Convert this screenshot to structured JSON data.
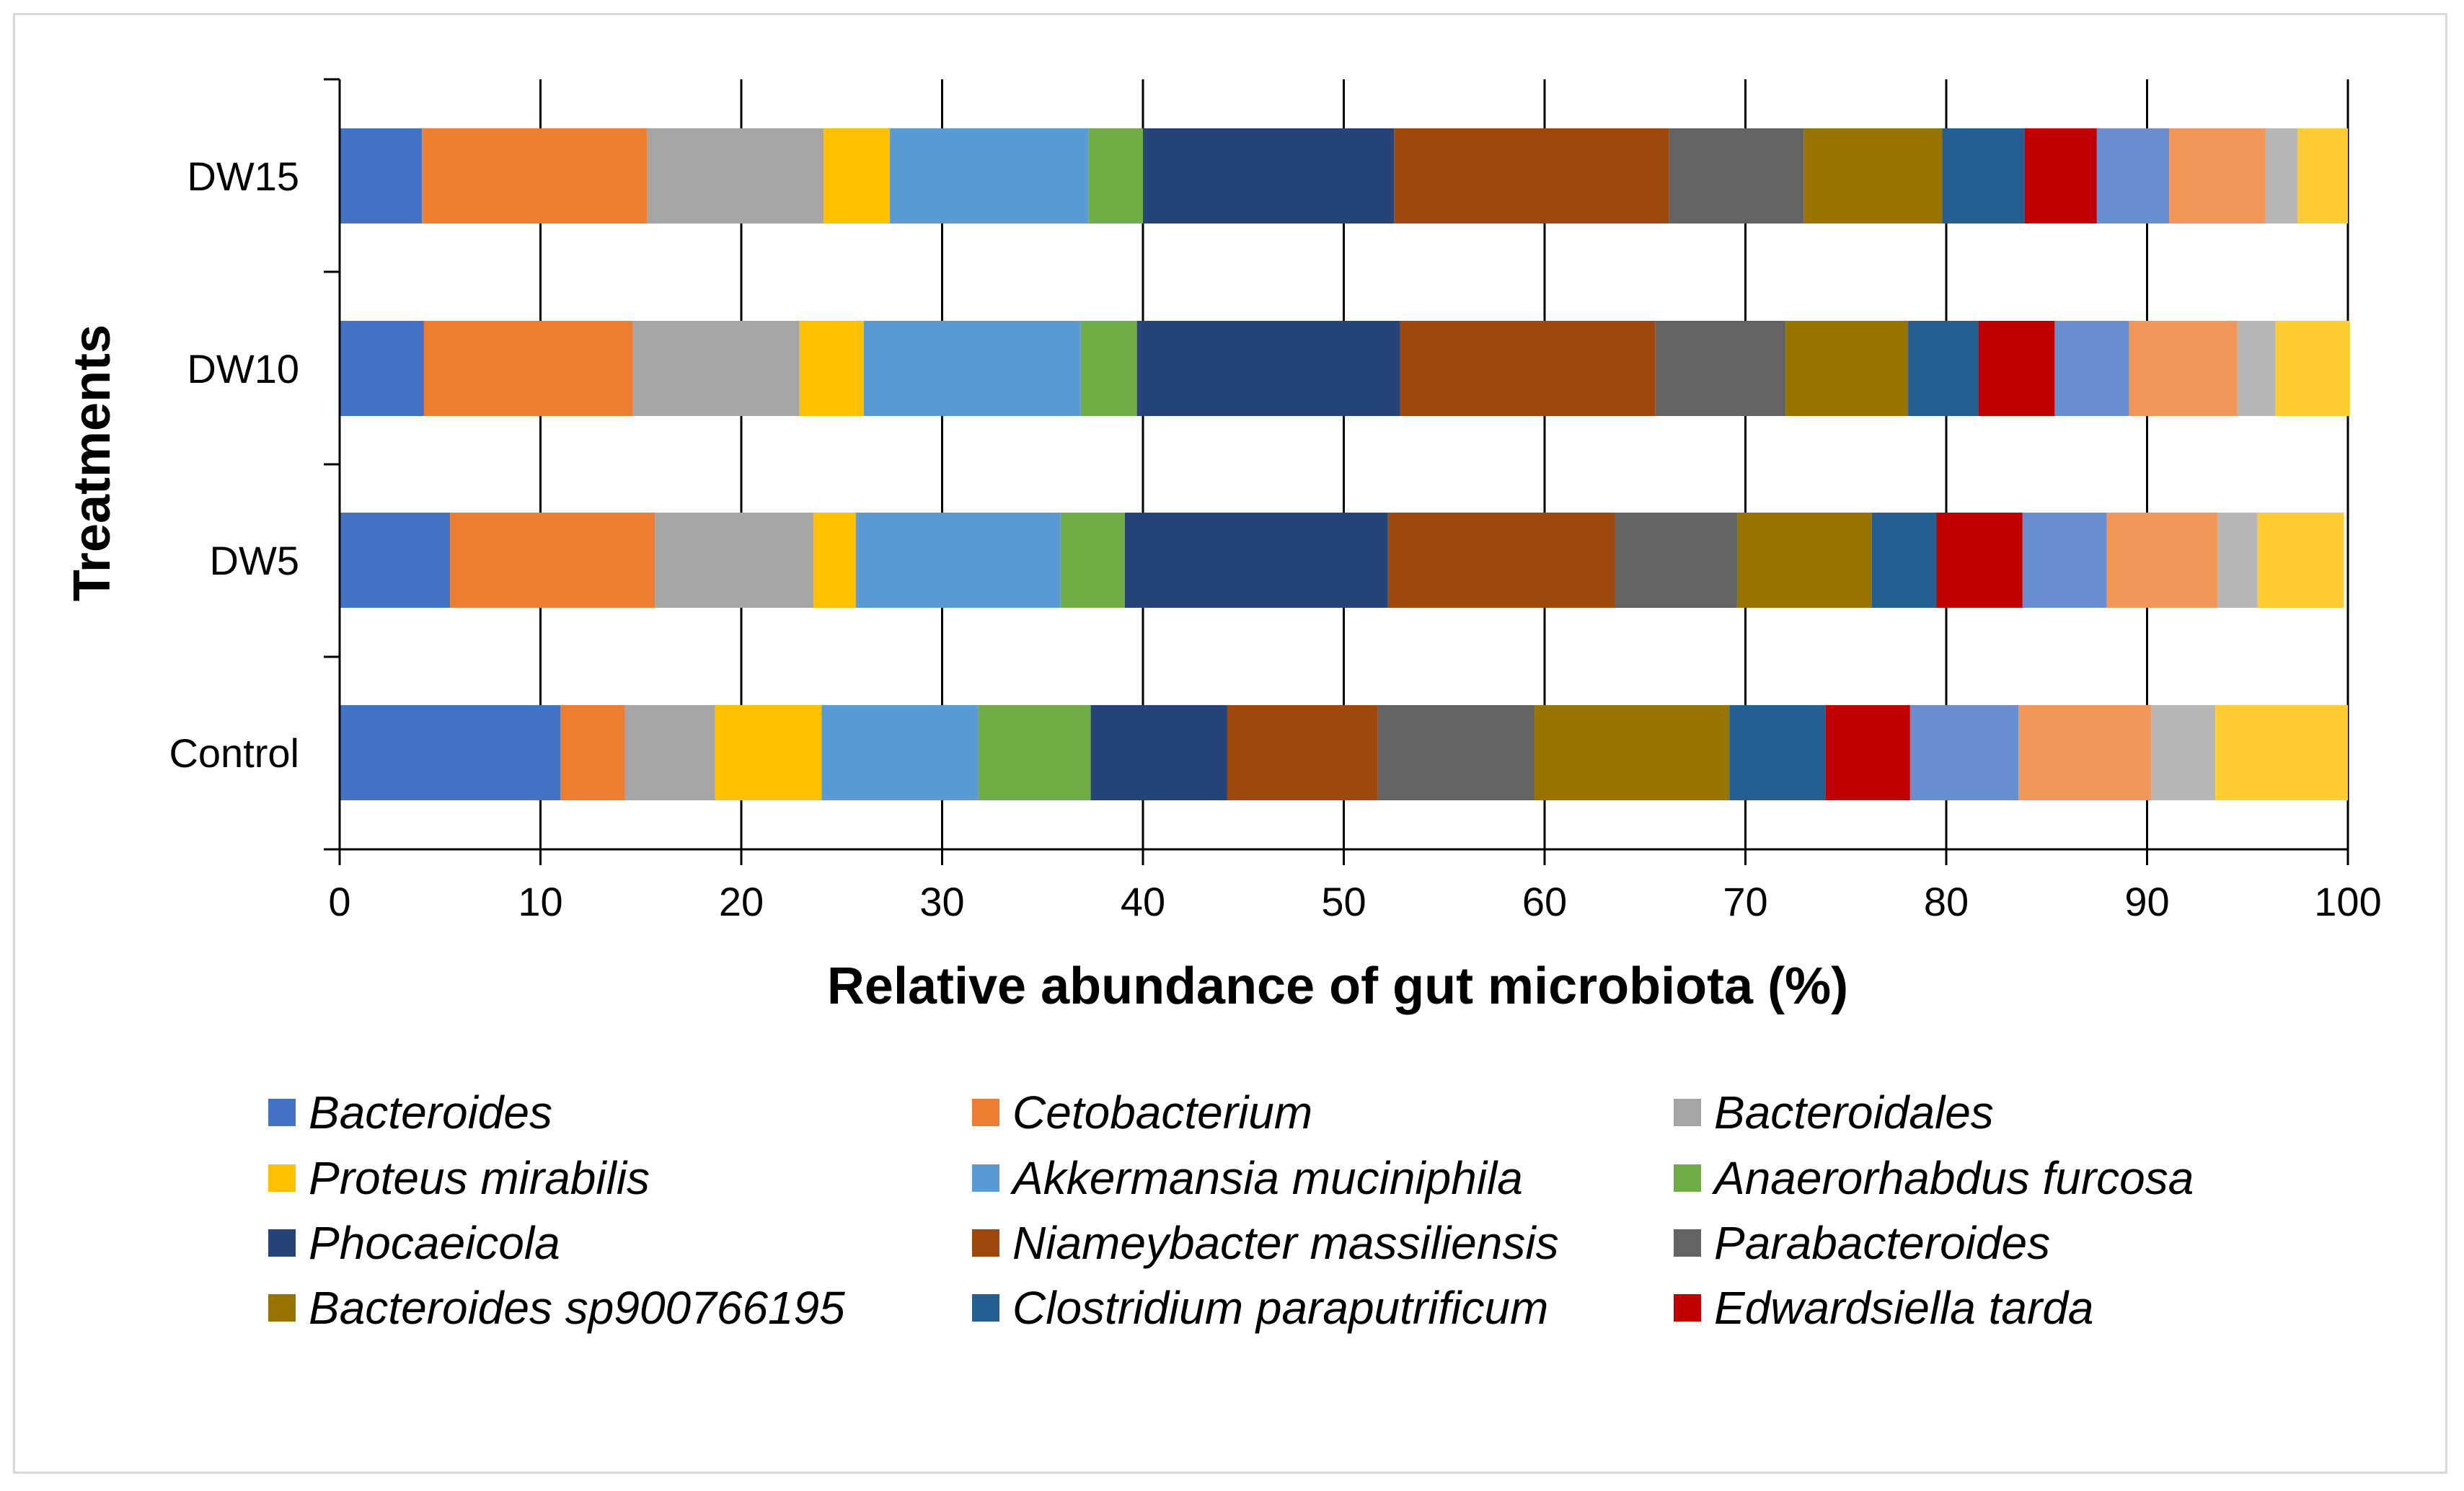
{
  "chart_data": {
    "type": "bar",
    "orientation": "horizontal",
    "stacked": true,
    "title": "",
    "xlabel": "Relative abundance of gut microbiota (%)",
    "ylabel": "Treatments",
    "xlim": [
      0,
      100
    ],
    "xticks": [
      0,
      10,
      20,
      30,
      40,
      50,
      60,
      70,
      80,
      90,
      100
    ],
    "grid": "vertical",
    "categories": [
      "Control",
      "DW5",
      "DW10",
      "DW15"
    ],
    "legend": {
      "placement": "bottom",
      "columns": 3,
      "shown_entries": [
        "Bacteroides",
        "Cetobacterium",
        "Bacteroidales",
        "Proteus mirabilis",
        "Akkermansia muciniphila",
        "Anaerorhabdus furcosa",
        "Phocaeicola",
        "Niameybacter massiliensis",
        "Parabacteroides",
        "Bacteroides sp900766195",
        "Clostridium paraputrificum",
        "Edwardsiella tarda"
      ]
    },
    "series": [
      {
        "name": "Bacteroides",
        "color": "#4472C4",
        "values": [
          11.0,
          5.5,
          4.2,
          4.1
        ]
      },
      {
        "name": "Cetobacterium",
        "color": "#ED7D31",
        "values": [
          3.2,
          10.2,
          10.4,
          11.2
        ]
      },
      {
        "name": "Bacteroidales",
        "color": "#A5A5A5",
        "values": [
          4.5,
          7.9,
          8.3,
          8.8
        ]
      },
      {
        "name": "Proteus mirabilis",
        "color": "#FFC000",
        "values": [
          5.3,
          2.1,
          3.2,
          3.3
        ]
      },
      {
        "name": "Akkermansia muciniphila",
        "color": "#5B9BD5",
        "values": [
          7.8,
          10.2,
          10.8,
          9.9
        ]
      },
      {
        "name": "Anaerorhabdus furcosa",
        "color": "#70AD47",
        "values": [
          5.6,
          3.2,
          2.8,
          2.7
        ]
      },
      {
        "name": "Phocaeicola",
        "color": "#264478",
        "values": [
          6.8,
          13.1,
          13.1,
          12.5
        ]
      },
      {
        "name": "Niameybacter massiliensis",
        "color": "#9E480E",
        "values": [
          7.5,
          11.3,
          12.7,
          13.7
        ]
      },
      {
        "name": "Parabacteroides",
        "color": "#636363",
        "values": [
          7.8,
          6.1,
          6.5,
          6.7
        ]
      },
      {
        "name": "Bacteroides sp900766195",
        "color": "#997300",
        "values": [
          9.7,
          6.7,
          6.1,
          6.9
        ]
      },
      {
        "name": "Clostridium paraputrificum",
        "color": "#255E91",
        "values": [
          4.8,
          3.2,
          3.5,
          4.1
        ]
      },
      {
        "name": "Edwardsiella tarda",
        "color": "#C00000",
        "values": [
          4.2,
          4.3,
          3.8,
          3.6
        ]
      },
      {
        "name": "",
        "color": "#698ED0",
        "values": [
          5.4,
          4.2,
          3.7,
          3.6
        ]
      },
      {
        "name": "",
        "color": "#F1975A",
        "values": [
          6.6,
          5.5,
          5.4,
          4.8
        ]
      },
      {
        "name": "",
        "color": "#B7B7B7",
        "values": [
          3.2,
          2.0,
          1.9,
          1.6
        ]
      },
      {
        "name": "",
        "color": "#FFCD33",
        "values": [
          6.6,
          4.3,
          3.7,
          2.5
        ]
      }
    ]
  }
}
